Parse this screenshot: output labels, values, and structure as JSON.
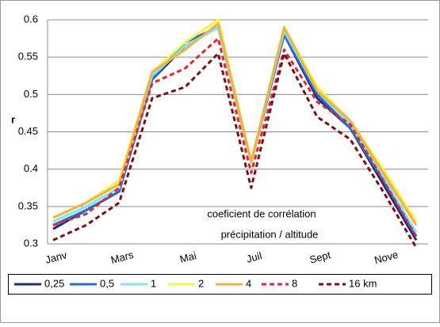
{
  "chart_data": {
    "type": "line",
    "ylabel": "r",
    "annotations": [
      "coeficient de corrélation",
      "précipitation / altitude"
    ],
    "categories": [
      "Janv",
      null,
      "Mars",
      null,
      "Mai",
      null,
      "Juil",
      null,
      "Sept",
      null,
      "Nove",
      null
    ],
    "ylim": [
      0.3,
      0.6
    ],
    "yticks": [
      0.3,
      0.35,
      0.4,
      0.45,
      0.5,
      0.55,
      0.6
    ],
    "grid": true,
    "legend": "bottom",
    "series": [
      {
        "name": "0,25",
        "color": "#1f2a80",
        "dash": false,
        "values": [
          0.32,
          0.345,
          0.37,
          0.52,
          0.565,
          0.59,
          0.41,
          0.58,
          0.495,
          0.455,
          0.38,
          0.305
        ]
      },
      {
        "name": "0,5",
        "color": "#1f6fd6",
        "dash": false,
        "values": [
          0.325,
          0.345,
          0.37,
          0.52,
          0.57,
          0.59,
          0.41,
          0.58,
          0.5,
          0.455,
          0.385,
          0.31
        ]
      },
      {
        "name": "1",
        "color": "#7fe3f5",
        "dash": false,
        "values": [
          0.33,
          0.35,
          0.375,
          0.525,
          0.565,
          0.59,
          0.41,
          0.585,
          0.505,
          0.46,
          0.39,
          0.315
        ]
      },
      {
        "name": "2",
        "color": "#f5f542",
        "dash": false,
        "values": [
          0.335,
          0.355,
          0.385,
          0.53,
          0.57,
          0.6,
          0.41,
          0.59,
          0.51,
          0.465,
          0.4,
          0.33
        ]
      },
      {
        "name": "4",
        "color": "#f2b33d",
        "dash": false,
        "values": [
          0.335,
          0.355,
          0.38,
          0.53,
          0.56,
          0.595,
          0.41,
          0.59,
          0.505,
          0.465,
          0.395,
          0.325
        ]
      },
      {
        "name": "8",
        "color": "#e5262a",
        "dash": true,
        "values": [
          0.325,
          0.34,
          0.375,
          0.515,
          0.535,
          0.575,
          0.395,
          0.56,
          0.49,
          0.46,
          0.385,
          0.31
        ]
      },
      {
        "name": "16 km",
        "color": "#7a1010",
        "dash": true,
        "values": [
          0.305,
          0.325,
          0.355,
          0.495,
          0.51,
          0.555,
          0.375,
          0.555,
          0.47,
          0.44,
          0.37,
          0.295
        ]
      }
    ]
  }
}
